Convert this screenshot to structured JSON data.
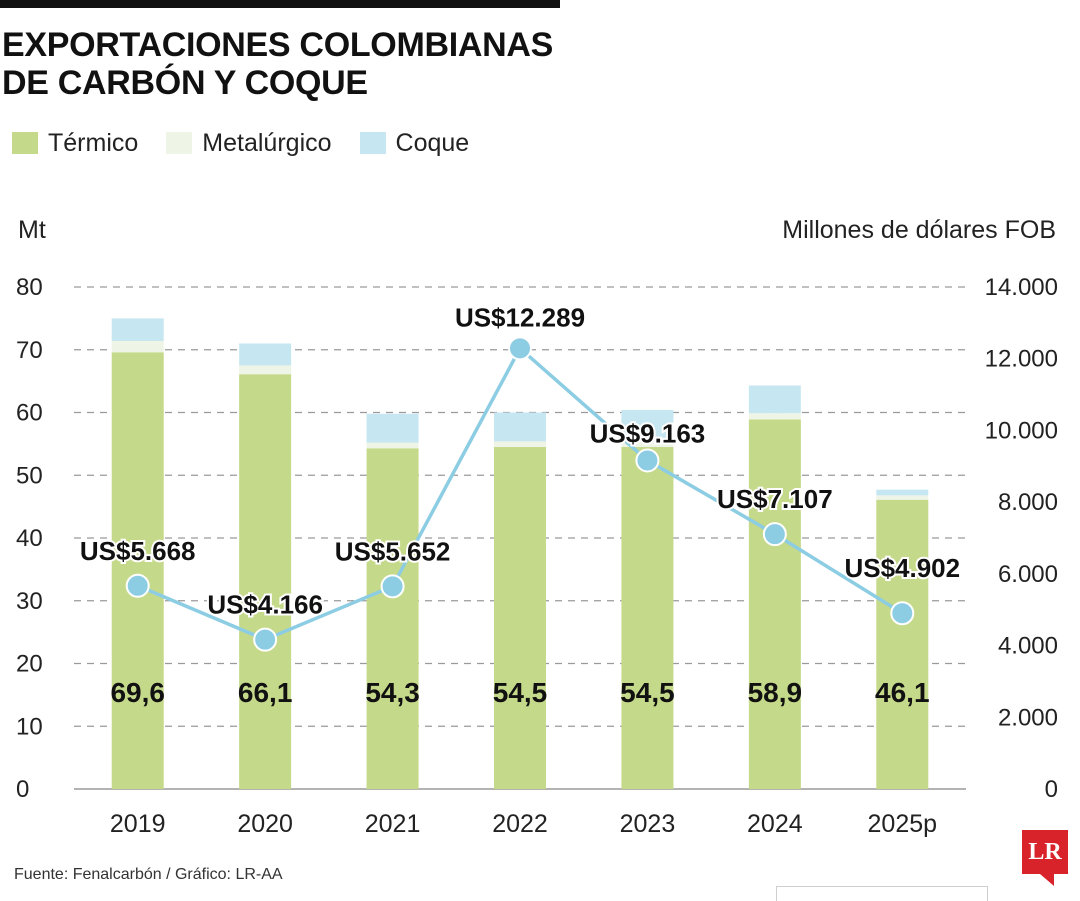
{
  "header": {
    "title_line1": "EXPORTACIONES COLOMBIANAS",
    "title_line2": "DE CARBÓN Y COQUE"
  },
  "legend": [
    {
      "label": "Térmico",
      "color": "#c5d98a"
    },
    {
      "label": "Metalúrgico",
      "color": "#eef5e6"
    },
    {
      "label": "Coque",
      "color": "#c6e6f1"
    }
  ],
  "chart_data": {
    "type": "bar",
    "title": "EXPORTACIONES COLOMBIANAS DE CARBÓN Y COQUE",
    "categories": [
      "2019",
      "2020",
      "2021",
      "2022",
      "2023",
      "2024",
      "2025p"
    ],
    "ylabel_left": "Mt",
    "ylabel_right": "Millones de dólares FOB",
    "ylim_left": [
      0,
      80
    ],
    "ylim_right": [
      0,
      14000
    ],
    "yticks_left": [
      "0",
      "10",
      "20",
      "30",
      "40",
      "50",
      "60",
      "70",
      "80"
    ],
    "yticks_right": [
      "0",
      "2.000",
      "4.000",
      "6.000",
      "8.000",
      "10.000",
      "12.000",
      "14.000"
    ],
    "stacked": true,
    "grid": "dashed-horizontal",
    "legend_position": "top-left",
    "series": [
      {
        "name": "Térmico",
        "color": "#c5d98a",
        "values": [
          69.6,
          66.1,
          54.3,
          54.5,
          54.5,
          58.9,
          46.1
        ],
        "labels": [
          "69,6",
          "66,1",
          "54,3",
          "54,5",
          "54,5",
          "58,9",
          "46,1"
        ]
      },
      {
        "name": "Metalúrgico",
        "color": "#eef5e6",
        "values": [
          1.8,
          1.4,
          0.9,
          0.9,
          1.0,
          1.0,
          0.7
        ]
      },
      {
        "name": "Coque",
        "color": "#c6e6f1",
        "values": [
          3.6,
          3.5,
          4.6,
          4.6,
          4.9,
          4.4,
          0.9
        ]
      }
    ],
    "line": {
      "name": "Millones de dólares FOB",
      "color": "#8ccde3",
      "axis": "right",
      "values": [
        5668,
        4166,
        5652,
        12289,
        9163,
        7107,
        4902
      ],
      "labels": [
        "US$5.668",
        "US$4.166",
        "US$5.652",
        "US$12.289",
        "US$9.163",
        "US$7.107",
        "US$4.902"
      ]
    }
  },
  "footer": {
    "source": "Fuente: Fenalcarbón / Gráfico: LR-AA",
    "logo": "LR"
  }
}
